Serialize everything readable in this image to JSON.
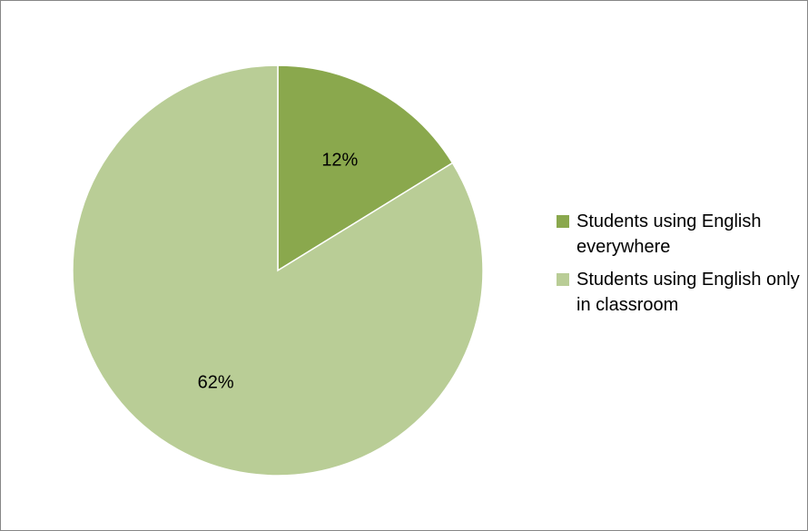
{
  "chart_data": {
    "type": "pie",
    "title": "",
    "slices": [
      {
        "label": "Students using English everywhere",
        "value": 12,
        "display": "12%",
        "color": "#8aa84d"
      },
      {
        "label": "Students using English only in classroom",
        "value": 62,
        "display": "62%",
        "color": "#b9cd96"
      }
    ],
    "legend_position": "right",
    "slice_border_color": "#ffffff"
  }
}
